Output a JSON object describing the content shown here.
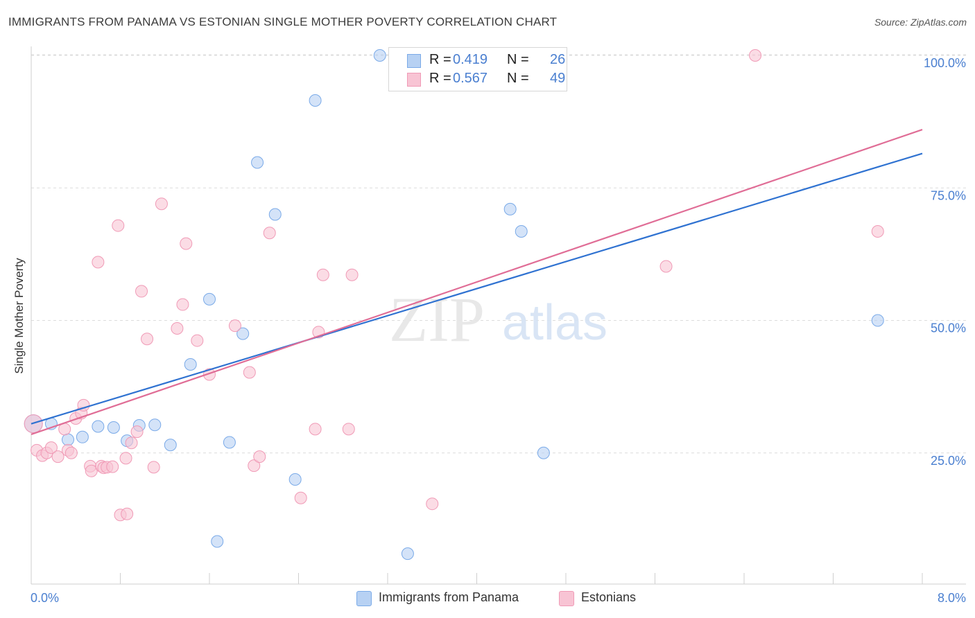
{
  "title": "IMMIGRANTS FROM PANAMA VS ESTONIAN SINGLE MOTHER POVERTY CORRELATION CHART",
  "source": "Source: ZipAtlas.com",
  "watermark": {
    "zip": "ZIP",
    "atlas": "atlas"
  },
  "legend": {
    "r_label": "R =",
    "n_label": "N =",
    "rows": [
      {
        "r": "0.419",
        "n": "26"
      },
      {
        "r": "0.567",
        "n": "49"
      }
    ]
  },
  "chart_data": {
    "type": "scatter",
    "title": "IMMIGRANTS FROM PANAMA VS ESTONIAN SINGLE MOTHER POVERTY CORRELATION CHART",
    "xlabel": "",
    "ylabel": "Single Mother Poverty",
    "xlim": [
      0,
      8
    ],
    "ylim": [
      0,
      100
    ],
    "x_tick_labels": [
      "0.0%",
      "8.0%"
    ],
    "y_tick_values": [
      25,
      50,
      75,
      100
    ],
    "y_tick_labels": [
      "25.0%",
      "50.0%",
      "75.0%",
      "100.0%"
    ],
    "grid": "horizontal dashed",
    "legend_position": "bottom",
    "series": [
      {
        "name": "Immigrants from Panama",
        "color": "#7aaae8",
        "fill": "#b7d1f3",
        "trend_color": "#2f72d1",
        "trend": [
          [
            0.0,
            30.5
          ],
          [
            8.0,
            81.5
          ]
        ],
        "points": [
          [
            0.02,
            30.5
          ],
          [
            0.18,
            30.5
          ],
          [
            0.33,
            27.5
          ],
          [
            0.46,
            28.0
          ],
          [
            0.6,
            30.0
          ],
          [
            0.74,
            29.8
          ],
          [
            0.86,
            27.3
          ],
          [
            0.97,
            30.2
          ],
          [
            1.11,
            30.3
          ],
          [
            1.25,
            26.5
          ],
          [
            1.43,
            41.7
          ],
          [
            1.6,
            54.0
          ],
          [
            1.67,
            8.3
          ],
          [
            1.78,
            27.0
          ],
          [
            1.9,
            47.5
          ],
          [
            2.03,
            79.8
          ],
          [
            2.19,
            70.0
          ],
          [
            2.37,
            20.0
          ],
          [
            2.55,
            91.5
          ],
          [
            3.13,
            100.0
          ],
          [
            3.74,
            100.0
          ],
          [
            4.3,
            71.0
          ],
          [
            4.4,
            66.8
          ],
          [
            4.6,
            25.0
          ],
          [
            3.38,
            6.0
          ],
          [
            7.6,
            50.0
          ]
        ]
      },
      {
        "name": "Estonians",
        "color": "#f09ab6",
        "fill": "#f8c4d4",
        "trend_color": "#e06d96",
        "trend": [
          [
            0.0,
            28.5
          ],
          [
            8.0,
            86.0
          ]
        ],
        "points": [
          [
            0.02,
            30.5
          ],
          [
            0.05,
            25.5
          ],
          [
            0.1,
            24.5
          ],
          [
            0.14,
            25.0
          ],
          [
            0.18,
            26.0
          ],
          [
            0.24,
            24.3
          ],
          [
            0.3,
            29.5
          ],
          [
            0.33,
            25.5
          ],
          [
            0.36,
            25.0
          ],
          [
            0.4,
            31.5
          ],
          [
            0.45,
            32.5
          ],
          [
            0.47,
            34.0
          ],
          [
            0.53,
            22.5
          ],
          [
            0.54,
            21.6
          ],
          [
            0.6,
            61.0
          ],
          [
            0.63,
            22.5
          ],
          [
            0.65,
            22.2
          ],
          [
            0.68,
            22.3
          ],
          [
            0.73,
            22.4
          ],
          [
            0.78,
            67.9
          ],
          [
            0.8,
            13.3
          ],
          [
            0.85,
            24.0
          ],
          [
            0.86,
            13.5
          ],
          [
            0.9,
            26.9
          ],
          [
            0.95,
            29.0
          ],
          [
            0.99,
            55.5
          ],
          [
            1.04,
            46.5
          ],
          [
            1.1,
            22.3
          ],
          [
            1.17,
            72.0
          ],
          [
            1.31,
            48.5
          ],
          [
            1.36,
            53.0
          ],
          [
            1.39,
            64.5
          ],
          [
            1.49,
            46.2
          ],
          [
            1.6,
            39.8
          ],
          [
            1.83,
            49.0
          ],
          [
            1.96,
            40.2
          ],
          [
            2.0,
            22.6
          ],
          [
            2.05,
            24.3
          ],
          [
            2.14,
            66.5
          ],
          [
            2.42,
            16.5
          ],
          [
            2.55,
            29.5
          ],
          [
            2.58,
            47.8
          ],
          [
            2.62,
            58.6
          ],
          [
            2.85,
            29.5
          ],
          [
            2.88,
            58.6
          ],
          [
            3.6,
            15.4
          ],
          [
            5.7,
            60.2
          ],
          [
            6.5,
            100.0
          ],
          [
            7.6,
            66.8
          ]
        ]
      }
    ]
  }
}
